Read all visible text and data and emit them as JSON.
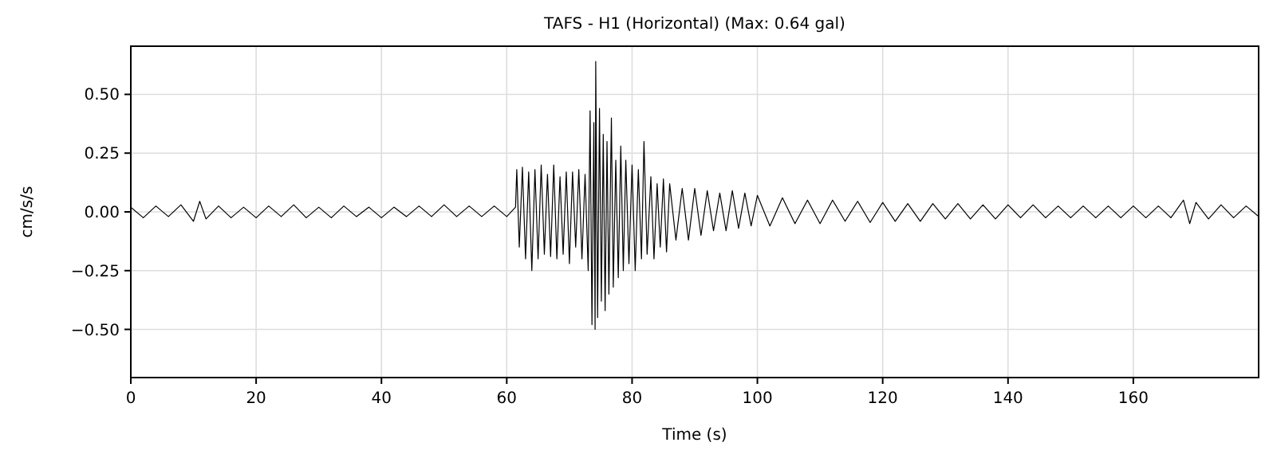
{
  "chart_data": {
    "type": "line",
    "title": "TAFS - H1 (Horizontal) (Max: 0.64 gal)",
    "xlabel": "Time (s)",
    "ylabel": "cm/s/s",
    "xlim": [
      0,
      180
    ],
    "ylim": [
      -0.705,
      0.705
    ],
    "xticks": [
      0,
      20,
      40,
      60,
      80,
      100,
      120,
      140,
      160
    ],
    "yticks": [
      {
        "value": -0.5,
        "label": "−0.50"
      },
      {
        "value": -0.25,
        "label": "−0.25"
      },
      {
        "value": 0,
        "label": "0.00"
      },
      {
        "value": 0.25,
        "label": "0.25"
      },
      {
        "value": 0.5,
        "label": "0.50"
      }
    ],
    "grid": true,
    "line_style": "solid",
    "series": [
      {
        "color": "#000000",
        "x": [
          0,
          2,
          4,
          6,
          8,
          10,
          11,
          12,
          14,
          16,
          18,
          20,
          22,
          24,
          26,
          28,
          30,
          32,
          34,
          36,
          38,
          40,
          42,
          44,
          46,
          48,
          50,
          52,
          54,
          56,
          58,
          60,
          61.4,
          61.6,
          62,
          62.5,
          63,
          63.5,
          64,
          64.5,
          65,
          65.5,
          66,
          66.5,
          67,
          67.5,
          68,
          68.5,
          69,
          69.5,
          70,
          70.5,
          71,
          71.5,
          72,
          72.5,
          73,
          73.3,
          73.6,
          73.9,
          74.1,
          74.2,
          74.5,
          74.8,
          75.1,
          75.4,
          75.7,
          76,
          76.3,
          76.7,
          77,
          77.4,
          77.8,
          78.2,
          78.6,
          79,
          79.5,
          80,
          80.5,
          81,
          81.5,
          81.9,
          82.4,
          83,
          83.5,
          84,
          84.5,
          85,
          85.5,
          86,
          87,
          88,
          89,
          90,
          91,
          92,
          93,
          94,
          95,
          96,
          97,
          98,
          99,
          100,
          102,
          104,
          106,
          108,
          110,
          112,
          114,
          116,
          118,
          120,
          122,
          124,
          126,
          128,
          130,
          132,
          134,
          136,
          138,
          140,
          142,
          144,
          146,
          148,
          150,
          152,
          154,
          156,
          158,
          160,
          162,
          164,
          166,
          168,
          169,
          170,
          172,
          174,
          176,
          178,
          180
        ],
        "values": [
          0.02,
          -0.025,
          0.025,
          -0.02,
          0.03,
          -0.04,
          0.045,
          -0.03,
          0.025,
          -0.025,
          0.02,
          -0.025,
          0.025,
          -0.02,
          0.03,
          -0.025,
          0.02,
          -0.025,
          0.025,
          -0.02,
          0.02,
          -0.025,
          0.02,
          -0.02,
          0.025,
          -0.02,
          0.03,
          -0.02,
          0.025,
          -0.02,
          0.025,
          -0.02,
          0.02,
          0.18,
          -0.15,
          0.19,
          -0.2,
          0.17,
          -0.25,
          0.18,
          -0.2,
          0.2,
          -0.18,
          0.16,
          -0.19,
          0.2,
          -0.2,
          0.15,
          -0.18,
          0.17,
          -0.22,
          0.17,
          -0.15,
          0.18,
          -0.2,
          0.16,
          -0.25,
          0.43,
          -0.48,
          0.38,
          -0.5,
          0.64,
          -0.45,
          0.44,
          -0.38,
          0.33,
          -0.42,
          0.3,
          -0.35,
          0.4,
          -0.32,
          0.22,
          -0.28,
          0.28,
          -0.25,
          0.22,
          -0.22,
          0.2,
          -0.25,
          0.18,
          -0.2,
          0.3,
          -0.18,
          0.15,
          -0.2,
          0.12,
          -0.15,
          0.14,
          -0.17,
          0.12,
          -0.12,
          0.1,
          -0.12,
          0.1,
          -0.1,
          0.09,
          -0.08,
          0.08,
          -0.08,
          0.09,
          -0.07,
          0.08,
          -0.06,
          0.07,
          -0.06,
          0.06,
          -0.05,
          0.05,
          -0.05,
          0.05,
          -0.04,
          0.045,
          -0.045,
          0.04,
          -0.04,
          0.035,
          -0.04,
          0.035,
          -0.03,
          0.035,
          -0.03,
          0.03,
          -0.03,
          0.03,
          -0.025,
          0.03,
          -0.025,
          0.025,
          -0.025,
          0.025,
          -0.025,
          0.025,
          -0.025,
          0.025,
          -0.025,
          0.025,
          -0.025,
          0.05,
          -0.05,
          0.04,
          -0.03,
          0.03,
          -0.025,
          0.025,
          -0.02
        ]
      }
    ]
  }
}
